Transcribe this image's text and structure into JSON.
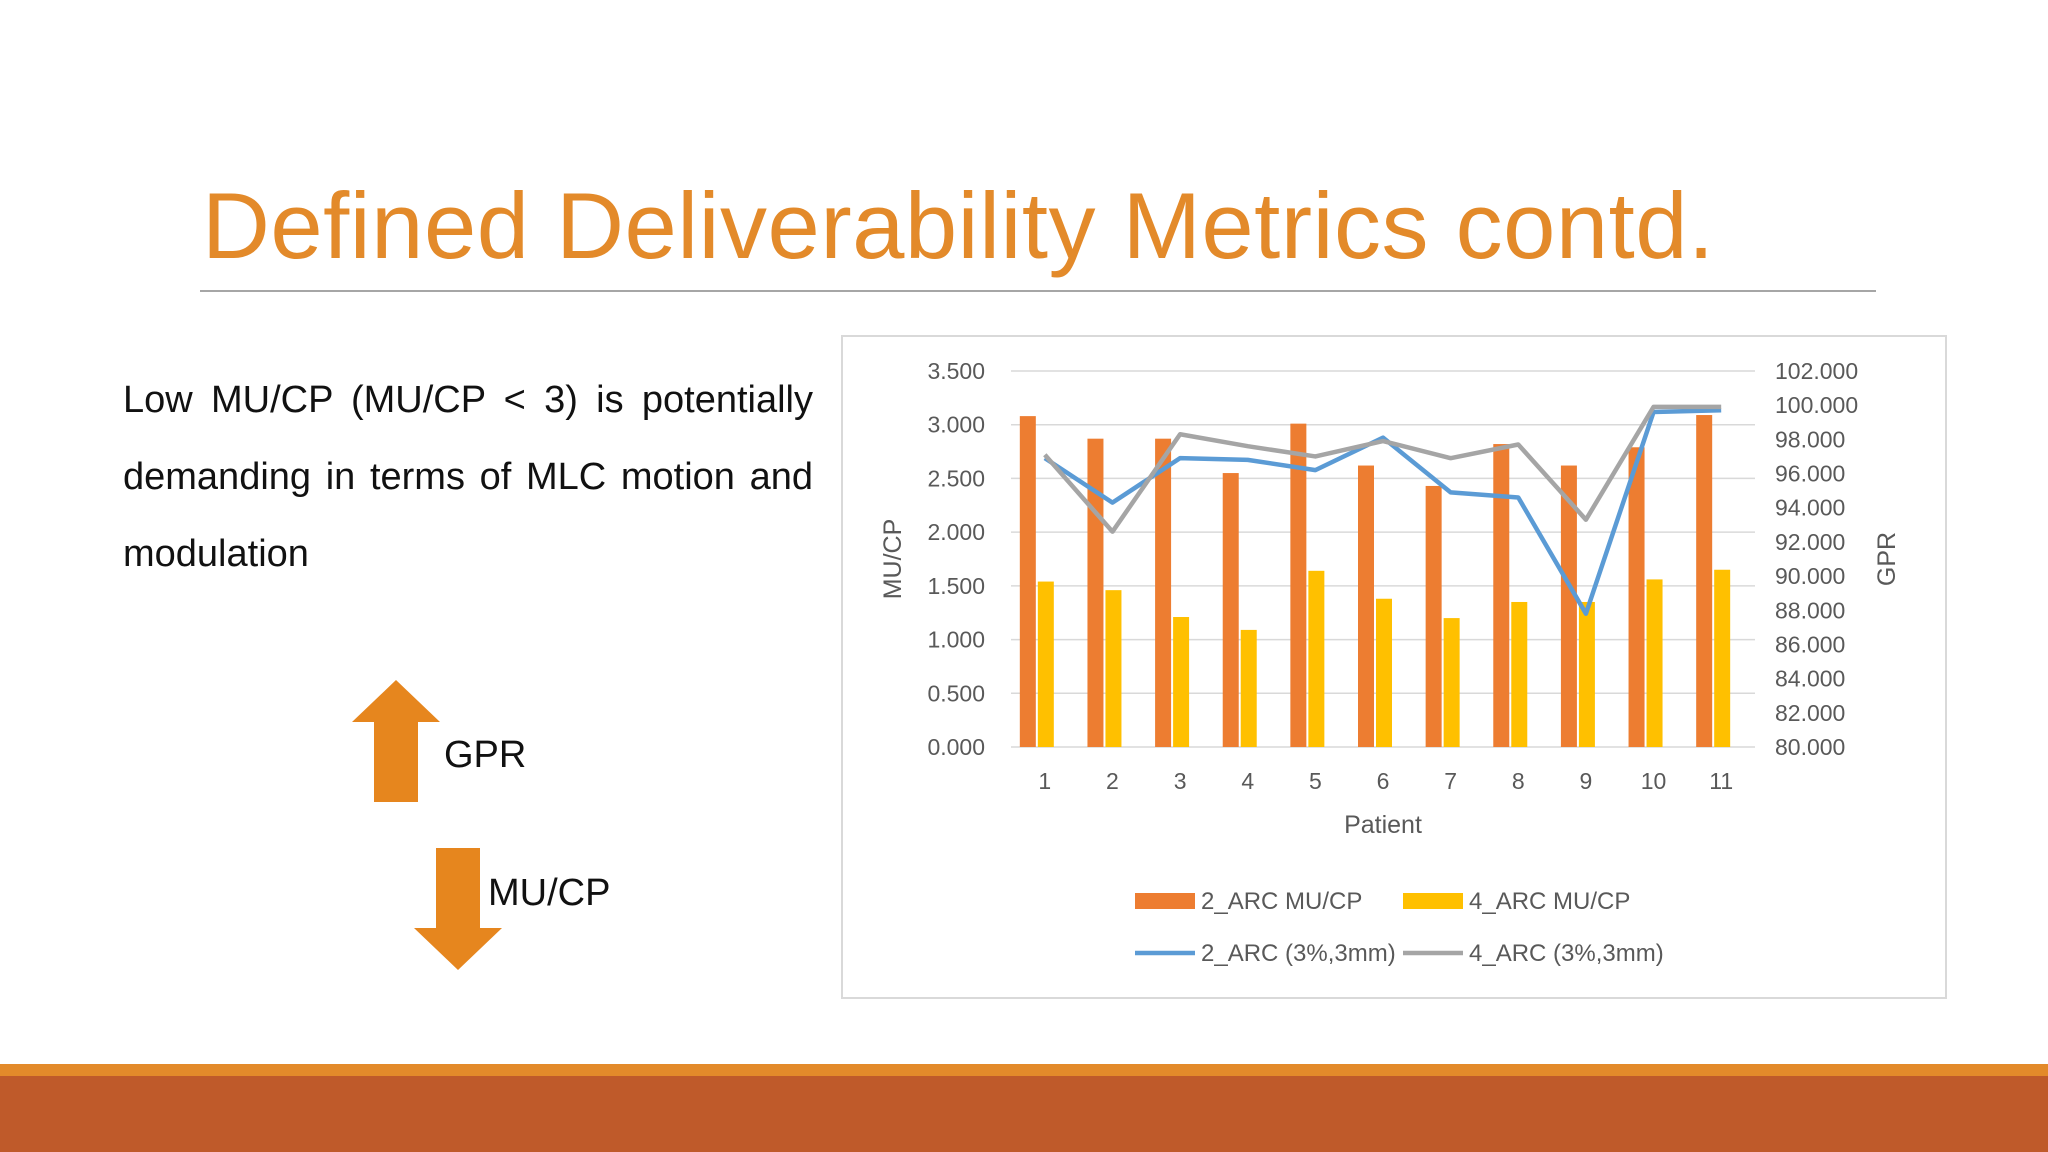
{
  "slide": {
    "title": "Defined Deliverability Metrics contd.",
    "body": "Low MU/CP (MU/CP < 3) is potentially demanding in terms of MLC motion and modulation",
    "up_arrow_label": "GPR",
    "down_arrow_label": "MU/CP"
  },
  "colors": {
    "title": "#E38A2A",
    "arrow": "#E6861E",
    "footer_light": "#E38A2A",
    "footer_dark": "#BF5A2A"
  },
  "chart_data": {
    "type": "bar",
    "title": "",
    "xlabel": "Patient",
    "ylabel": "MU/CP",
    "y2label": "GPR",
    "categories": [
      "1",
      "2",
      "3",
      "4",
      "5",
      "6",
      "7",
      "8",
      "9",
      "10",
      "11"
    ],
    "ylim": [
      0,
      3.5
    ],
    "y2lim": [
      80,
      102
    ],
    "yticks": [
      "0.000",
      "0.500",
      "1.000",
      "1.500",
      "2.000",
      "2.500",
      "3.000",
      "3.500"
    ],
    "y2ticks": [
      "80.000",
      "82.000",
      "84.000",
      "86.000",
      "88.000",
      "90.000",
      "92.000",
      "94.000",
      "96.000",
      "98.000",
      "100.000",
      "102.000"
    ],
    "grid": true,
    "legend_position": "bottom",
    "series": [
      {
        "name": "2_ARC MU/CP",
        "kind": "bar",
        "axis": "left",
        "color": "#ED7D31",
        "values": [
          3.08,
          2.87,
          2.87,
          2.55,
          3.01,
          2.62,
          2.43,
          2.82,
          2.62,
          2.79,
          3.09
        ]
      },
      {
        "name": "4_ARC MU/CP",
        "kind": "bar",
        "axis": "left",
        "color": "#FFC000",
        "values": [
          1.54,
          1.46,
          1.21,
          1.09,
          1.64,
          1.38,
          1.2,
          1.35,
          1.35,
          1.56,
          1.65
        ]
      },
      {
        "name": "2_ARC (3%,3mm)",
        "kind": "line",
        "axis": "right",
        "color": "#5B9BD5",
        "values": [
          96.9,
          94.3,
          96.9,
          96.8,
          96.2,
          98.1,
          94.9,
          94.6,
          87.8,
          99.6,
          99.7
        ]
      },
      {
        "name": "4_ARC (3%,3mm)",
        "kind": "line",
        "axis": "right",
        "color": "#A5A5A5",
        "values": [
          97.1,
          92.6,
          98.3,
          97.6,
          97.0,
          97.9,
          96.9,
          97.7,
          93.3,
          99.9,
          99.9
        ]
      }
    ]
  }
}
